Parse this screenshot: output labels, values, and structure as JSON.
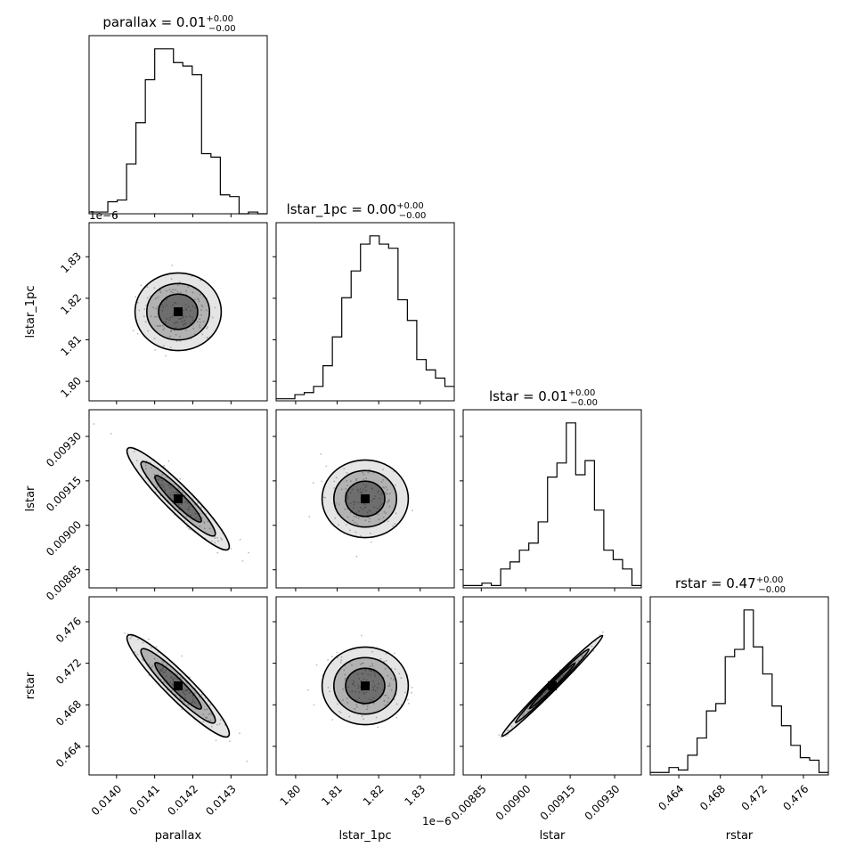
{
  "chart_data": {
    "type": "corner",
    "parameters": [
      "parallax",
      "lstar_1pc",
      "lstar",
      "rstar"
    ],
    "titles": [
      {
        "text": "parallax = 0.01",
        "sup": "+0.00",
        "sub": "−0.00"
      },
      {
        "text": "lstar_1pc = 0.00",
        "sup": "+0.00",
        "sub": "−0.00"
      },
      {
        "text": "lstar = 0.01",
        "sup": "+0.00",
        "sub": "−0.00"
      },
      {
        "text": "rstar = 0.47",
        "sup": "+0.00",
        "sub": "−0.00"
      }
    ],
    "axis_labels": [
      "parallax",
      "lstar_1pc",
      "lstar",
      "rstar"
    ],
    "offset_text": {
      "lstar_1pc_y": "1e−6",
      "lstar_1pc_x": "1e−6"
    },
    "ranges": [
      [
        0.013928,
        0.014395
      ],
      [
        1.7953e-06,
        1.8382e-06
      ],
      [
        0.008789,
        0.00939
      ],
      [
        0.46125,
        0.4784
      ]
    ],
    "ticks": [
      {
        "values": [
          0.014,
          0.0141,
          0.0142,
          0.0143
        ],
        "labels": [
          "0.0140",
          "0.0141",
          "0.0142",
          "0.0143"
        ]
      },
      {
        "values": [
          1.8e-06,
          1.81e-06,
          1.82e-06,
          1.83e-06
        ],
        "labels": [
          "1.80",
          "1.81",
          "1.82",
          "1.83"
        ]
      },
      {
        "values": [
          0.00885,
          0.009,
          0.00915,
          0.0093
        ],
        "labels": [
          "0.00885",
          "0.00900",
          "0.00915",
          "0.00930"
        ]
      },
      {
        "values": [
          0.464,
          0.468,
          0.472,
          0.476
        ],
        "labels": [
          "0.464",
          "0.468",
          "0.472",
          "0.476"
        ]
      }
    ],
    "histograms": [
      {
        "param": "parallax",
        "counts": [
          1,
          1,
          7,
          8,
          29,
          53,
          78,
          96,
          96,
          88,
          86,
          81,
          35,
          33,
          11,
          10,
          0,
          1,
          0
        ]
      },
      {
        "param": "lstar_1pc",
        "counts": [
          1,
          1,
          3,
          4,
          7,
          17,
          31,
          50,
          63,
          76,
          80,
          76,
          74,
          49,
          39,
          20,
          15,
          11,
          7
        ]
      },
      {
        "param": "lstar",
        "counts": [
          1,
          1,
          2,
          1,
          8,
          11,
          16,
          19,
          28,
          47,
          53,
          70,
          48,
          54,
          33,
          16,
          12,
          8,
          1
        ]
      },
      {
        "param": "rstar",
        "counts": [
          1,
          1,
          3,
          2,
          8,
          15,
          26,
          29,
          48,
          51,
          67,
          52,
          41,
          28,
          20,
          12,
          7,
          6,
          1
        ]
      }
    ],
    "correlations": [
      {
        "x": "lstar_1pc",
        "y": "parallax",
        "rho": 0.0
      },
      {
        "x": "lstar",
        "y": "parallax",
        "rho": -0.93
      },
      {
        "x": "lstar",
        "y": "lstar_1pc",
        "rho": 0.1
      },
      {
        "x": "rstar",
        "y": "parallax",
        "rho": -0.95
      },
      {
        "x": "rstar",
        "y": "lstar_1pc",
        "rho": 0.05
      },
      {
        "x": "rstar",
        "y": "lstar",
        "rho": 0.99
      }
    ],
    "style": {
      "line": "#000000",
      "density": "#000000",
      "background": "#ffffff"
    }
  }
}
